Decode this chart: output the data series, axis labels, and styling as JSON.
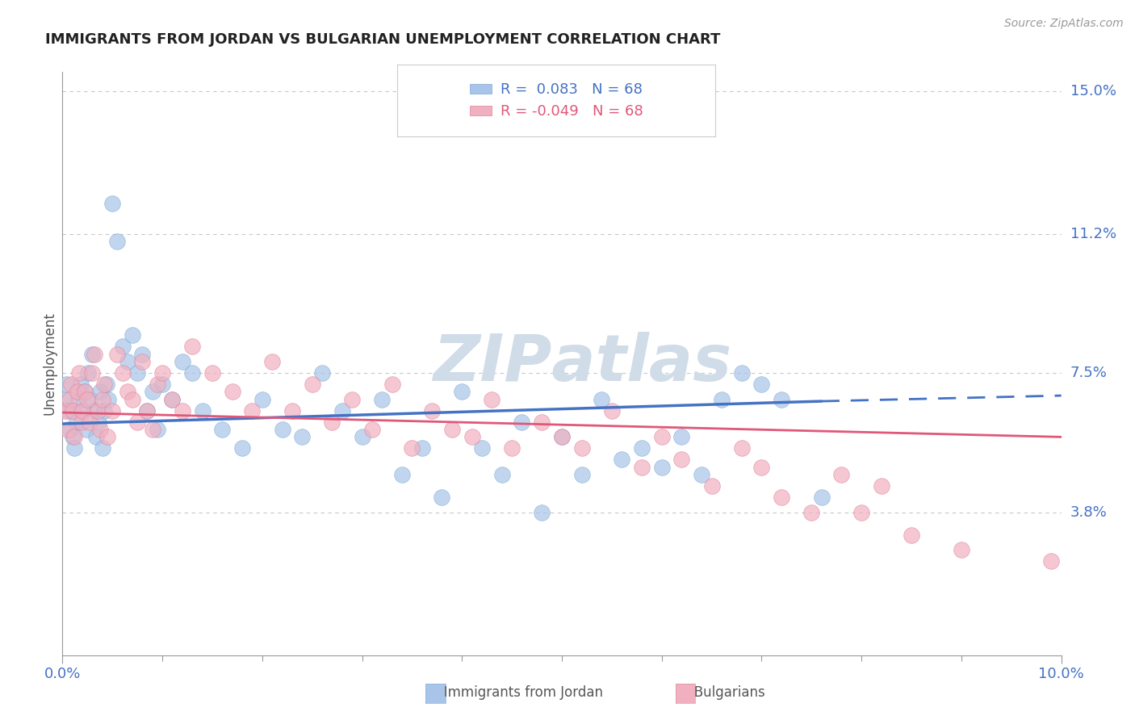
{
  "title": "IMMIGRANTS FROM JORDAN VS BULGARIAN UNEMPLOYMENT CORRELATION CHART",
  "source": "Source: ZipAtlas.com",
  "xmin": 0.0,
  "xmax": 0.1,
  "ymin": 0.0,
  "ymax": 0.155,
  "ylabel_ticks": [
    0.038,
    0.075,
    0.112,
    0.15
  ],
  "ylabel_labels": [
    "3.8%",
    "7.5%",
    "11.2%",
    "15.0%"
  ],
  "series1_name": "Immigrants from Jordan",
  "series1_color": "#a8c4e8",
  "series1_edge_color": "#7aaad4",
  "series1_R": 0.083,
  "series1_N": 68,
  "series1_line_color": "#4472c4",
  "series2_name": "Bulgarians",
  "series2_color": "#f0b0c0",
  "series2_edge_color": "#e08098",
  "series2_R": -0.049,
  "series2_N": 68,
  "series2_line_color": "#e05878",
  "legend_R1_color": "#4472c4",
  "legend_R2_color": "#e05878",
  "background_color": "#ffffff",
  "grid_color": "#c8c8c8",
  "axis_tick_color": "#4472c4",
  "watermark_color": "#d0dce8",
  "series1_x": [
    0.0002,
    0.0004,
    0.0006,
    0.0008,
    0.001,
    0.0012,
    0.0014,
    0.0016,
    0.0018,
    0.002,
    0.0022,
    0.0024,
    0.0026,
    0.0028,
    0.003,
    0.0032,
    0.0034,
    0.0036,
    0.0038,
    0.004,
    0.0042,
    0.0044,
    0.0046,
    0.005,
    0.0055,
    0.006,
    0.0065,
    0.007,
    0.0075,
    0.008,
    0.0085,
    0.009,
    0.0095,
    0.01,
    0.011,
    0.012,
    0.013,
    0.014,
    0.016,
    0.018,
    0.02,
    0.022,
    0.024,
    0.026,
    0.028,
    0.03,
    0.032,
    0.034,
    0.036,
    0.038,
    0.04,
    0.042,
    0.044,
    0.046,
    0.048,
    0.05,
    0.052,
    0.054,
    0.056,
    0.058,
    0.06,
    0.062,
    0.064,
    0.066,
    0.068,
    0.07,
    0.072,
    0.076
  ],
  "series1_y": [
    0.068,
    0.072,
    0.065,
    0.06,
    0.058,
    0.055,
    0.062,
    0.068,
    0.072,
    0.065,
    0.07,
    0.06,
    0.075,
    0.068,
    0.08,
    0.065,
    0.058,
    0.062,
    0.07,
    0.055,
    0.065,
    0.072,
    0.068,
    0.12,
    0.11,
    0.082,
    0.078,
    0.085,
    0.075,
    0.08,
    0.065,
    0.07,
    0.06,
    0.072,
    0.068,
    0.078,
    0.075,
    0.065,
    0.06,
    0.055,
    0.068,
    0.06,
    0.058,
    0.075,
    0.065,
    0.058,
    0.068,
    0.048,
    0.055,
    0.042,
    0.07,
    0.055,
    0.048,
    0.062,
    0.038,
    0.058,
    0.048,
    0.068,
    0.052,
    0.055,
    0.05,
    0.058,
    0.048,
    0.068,
    0.075,
    0.072,
    0.068,
    0.042
  ],
  "series2_x": [
    0.0003,
    0.0005,
    0.0007,
    0.0009,
    0.001,
    0.0012,
    0.0015,
    0.0017,
    0.0019,
    0.002,
    0.0022,
    0.0025,
    0.0027,
    0.003,
    0.0032,
    0.0035,
    0.0038,
    0.004,
    0.0042,
    0.0045,
    0.005,
    0.0055,
    0.006,
    0.0065,
    0.007,
    0.0075,
    0.008,
    0.0085,
    0.009,
    0.0095,
    0.01,
    0.011,
    0.012,
    0.013,
    0.015,
    0.017,
    0.019,
    0.021,
    0.023,
    0.025,
    0.027,
    0.029,
    0.031,
    0.033,
    0.035,
    0.037,
    0.039,
    0.041,
    0.043,
    0.045,
    0.048,
    0.05,
    0.052,
    0.055,
    0.058,
    0.06,
    0.062,
    0.065,
    0.068,
    0.07,
    0.072,
    0.075,
    0.078,
    0.08,
    0.082,
    0.085,
    0.09,
    0.099
  ],
  "series2_y": [
    0.065,
    0.06,
    0.068,
    0.072,
    0.065,
    0.058,
    0.07,
    0.075,
    0.062,
    0.065,
    0.07,
    0.068,
    0.062,
    0.075,
    0.08,
    0.065,
    0.06,
    0.068,
    0.072,
    0.058,
    0.065,
    0.08,
    0.075,
    0.07,
    0.068,
    0.062,
    0.078,
    0.065,
    0.06,
    0.072,
    0.075,
    0.068,
    0.065,
    0.082,
    0.075,
    0.07,
    0.065,
    0.078,
    0.065,
    0.072,
    0.062,
    0.068,
    0.06,
    0.072,
    0.055,
    0.065,
    0.06,
    0.058,
    0.068,
    0.055,
    0.062,
    0.058,
    0.055,
    0.065,
    0.05,
    0.058,
    0.052,
    0.045,
    0.055,
    0.05,
    0.042,
    0.038,
    0.048,
    0.038,
    0.045,
    0.032,
    0.028,
    0.025
  ],
  "line1_x_solid_end": 0.076,
  "line1_x_start": 0.0,
  "line1_y_start": 0.0615,
  "line1_y_end_solid": 0.0675,
  "line1_y_end_dashed": 0.069,
  "line2_x_start": 0.0,
  "line2_y_start": 0.0645,
  "line2_y_end": 0.058
}
